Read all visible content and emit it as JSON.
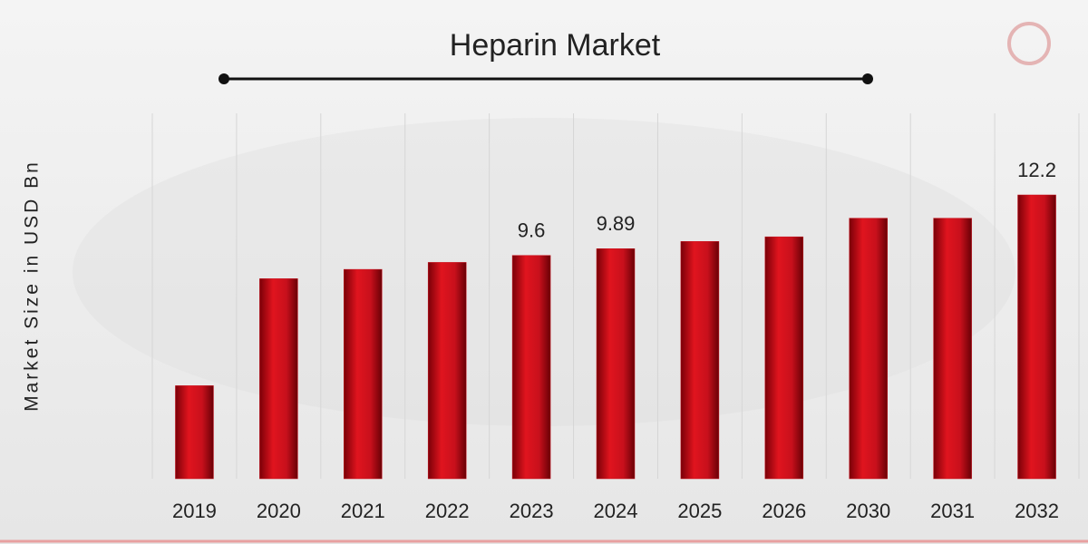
{
  "chart_data": {
    "type": "bar",
    "title": "Heparin Market",
    "y_label": "Market Size in USD Bn",
    "categories": [
      "2019",
      "2020",
      "2021",
      "2022",
      "2023",
      "2024",
      "2025",
      "2026",
      "2030",
      "2031",
      "2032"
    ],
    "values": [
      4.0,
      8.6,
      9.0,
      9.3,
      9.6,
      9.89,
      10.2,
      10.4,
      11.2,
      11.2,
      12.2
    ],
    "value_labels": [
      null,
      null,
      null,
      null,
      "9.6",
      "9.89",
      null,
      null,
      null,
      null,
      "12.2"
    ],
    "color": "#c8101c",
    "grid": true
  }
}
